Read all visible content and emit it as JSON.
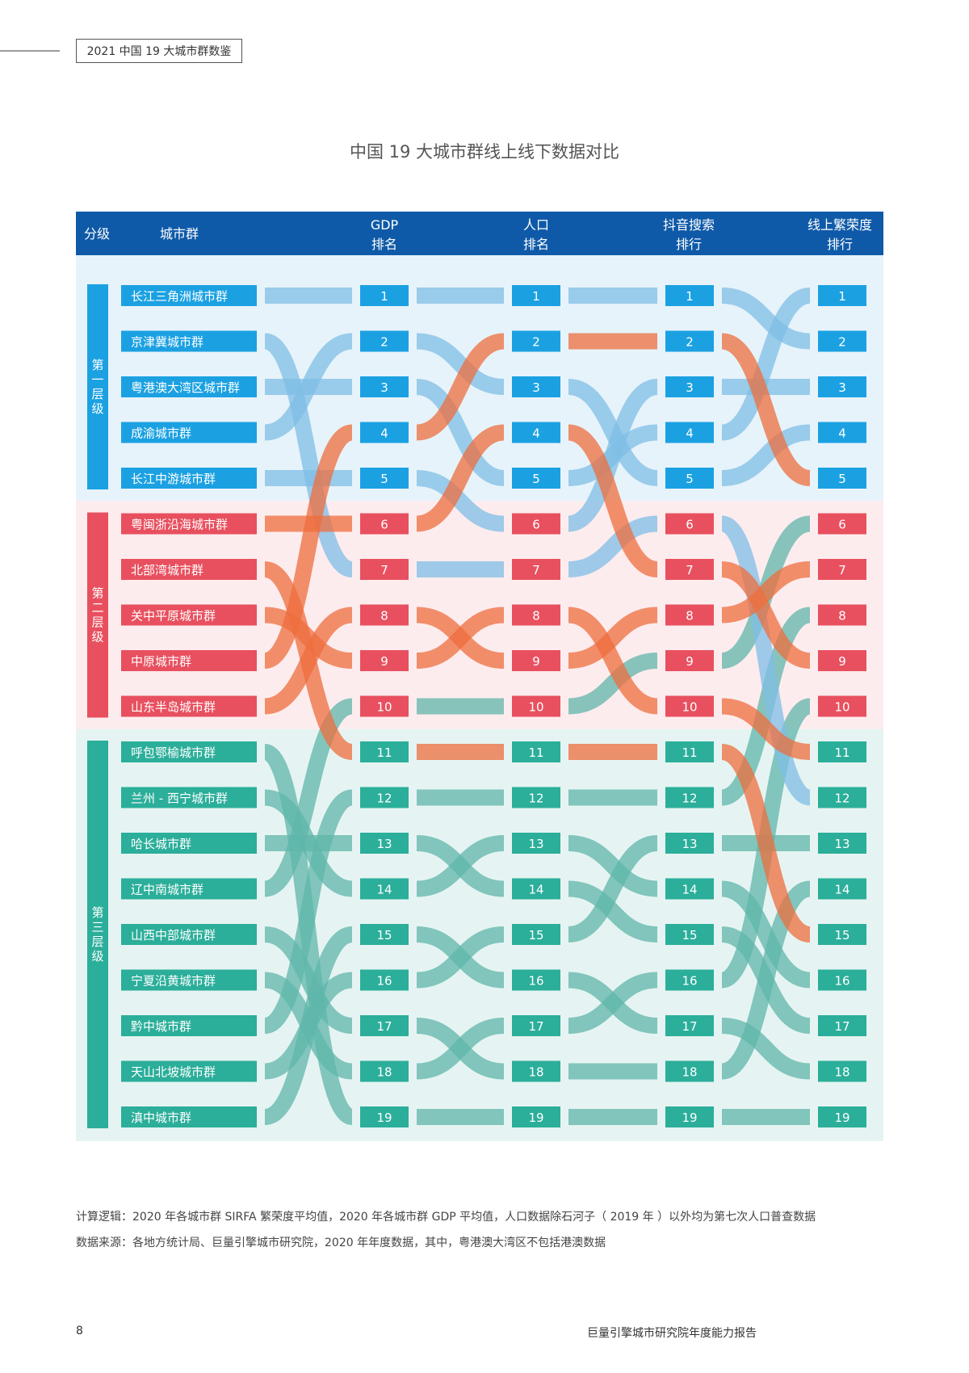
{
  "header": {
    "tag": "2021 中国 19 大城市群数鉴"
  },
  "title": "中国 19 大城市群线上线下数据对比",
  "chart_data": {
    "type": "table",
    "title": "中国 19 大城市群线上线下数据对比",
    "columns": [
      {
        "key": "tier",
        "line1": "分级",
        "line2": ""
      },
      {
        "key": "name",
        "line1": "城市群",
        "line2": ""
      },
      {
        "key": "gdp",
        "line1": "GDP",
        "line2": "排名"
      },
      {
        "key": "pop",
        "line1": "人口",
        "line2": "排名"
      },
      {
        "key": "douyin",
        "line1": "抖音搜索",
        "line2": "排行"
      },
      {
        "key": "online",
        "line1": "线上繁荣度",
        "line2": "排行"
      }
    ],
    "tiers": [
      {
        "label": "第一层级",
        "color": "#1ba1e2",
        "bg": "#e6f3fa",
        "from": 1,
        "to": 5
      },
      {
        "label": "第二层级",
        "color": "#e8505f",
        "bg": "#fdecee",
        "from": 6,
        "to": 10
      },
      {
        "label": "第三层级",
        "color": "#2bae9a",
        "bg": "#e5f4f2",
        "from": 11,
        "to": 19
      }
    ],
    "ranks": [
      "1",
      "2",
      "3",
      "4",
      "5",
      "6",
      "7",
      "8",
      "9",
      "10",
      "11",
      "12",
      "13",
      "14",
      "15",
      "16",
      "17",
      "18",
      "19"
    ],
    "rows": [
      {
        "name": "长江三角洲城市群",
        "tier": 1,
        "gdp": 1,
        "pop": 1,
        "douyin": 1,
        "online": 2
      },
      {
        "name": "京津冀城市群",
        "tier": 1,
        "gdp": 7,
        "pop": 7,
        "douyin": 6,
        "online": 12
      },
      {
        "name": "粤港澳大湾区城市群",
        "tier": 1,
        "gdp": 3,
        "pop": 5,
        "douyin": 4,
        "online": 1
      },
      {
        "name": "成渝城市群",
        "tier": 1,
        "gdp": 2,
        "pop": 3,
        "douyin": 5,
        "online": 4
      },
      {
        "name": "长江中游城市群",
        "tier": 1,
        "gdp": 5,
        "pop": 6,
        "douyin": 3,
        "online": 3
      },
      {
        "name": "粤闽浙沿海城市群",
        "tier": 2,
        "gdp": 6,
        "pop": 4,
        "douyin": 7,
        "online": 9
      },
      {
        "name": "北部湾城市群",
        "tier": 2,
        "gdp": 11,
        "pop": 11,
        "douyin": 11,
        "online": 15
      },
      {
        "name": "关中平原城市群",
        "tier": 2,
        "gdp": 9,
        "pop": 8,
        "douyin": 10,
        "online": 11
      },
      {
        "name": "中原城市群",
        "tier": 2,
        "gdp": 4,
        "pop": 2,
        "douyin": 2,
        "online": 5
      },
      {
        "name": "山东半岛城市群",
        "tier": 2,
        "gdp": 8,
        "pop": 9,
        "douyin": 8,
        "online": 7
      },
      {
        "name": "呼包鄂榆城市群",
        "tier": 3,
        "gdp": 19,
        "pop": 19,
        "douyin": 19,
        "online": 19
      },
      {
        "name": "兰州 - 西宁城市群",
        "tier": 3,
        "gdp": 14,
        "pop": 13,
        "douyin": 14,
        "online": 16
      },
      {
        "name": "哈长城市群",
        "tier": 3,
        "gdp": 13,
        "pop": 14,
        "douyin": 15,
        "online": 17
      },
      {
        "name": "辽中南城市群",
        "tier": 3,
        "gdp": 10,
        "pop": 10,
        "douyin": 9,
        "online": 6
      },
      {
        "name": "山西中部城市群",
        "tier": 3,
        "gdp": 17,
        "pop": 18,
        "douyin": 18,
        "online": 14
      },
      {
        "name": "宁夏沿黄城市群",
        "tier": 3,
        "gdp": 18,
        "pop": 17,
        "douyin": 16,
        "online": 10
      },
      {
        "name": "黔中城市群",
        "tier": 3,
        "gdp": 12,
        "pop": 12,
        "douyin": 12,
        "online": 8
      },
      {
        "name": "天山北坡城市群",
        "tier": 3,
        "gdp": 16,
        "pop": 15,
        "douyin": 13,
        "online": 13
      },
      {
        "name": "滇中城市群",
        "tier": 3,
        "gdp": 15,
        "pop": 16,
        "douyin": 17,
        "online": 18
      }
    ],
    "colors": {
      "header_bg": "#0f5aa8",
      "blue": "#1ba1e2",
      "red": "#e8505f",
      "green": "#2bae9a",
      "flow_blue": "#7fbde6",
      "flow_orange": "#ee6e3e",
      "flow_green": "#5fb5a9"
    }
  },
  "notes": {
    "calc_label": "计算逻辑：",
    "calc_text": "2020 年各城市群 SIRFA 繁荣度平均值，2020 年各城市群 GDP 平均值，人口数据除石河子（ 2019 年 ）以外均为第七次人口普查数据",
    "source_label": "数据来源：",
    "source_text": "各地方统计局、巨量引擎城市研究院，2020 年年度数据，其中，粤港澳大湾区不包括港澳数据"
  },
  "footer": {
    "page": "8",
    "report": "巨量引擎城市研究院年度能力报告"
  }
}
